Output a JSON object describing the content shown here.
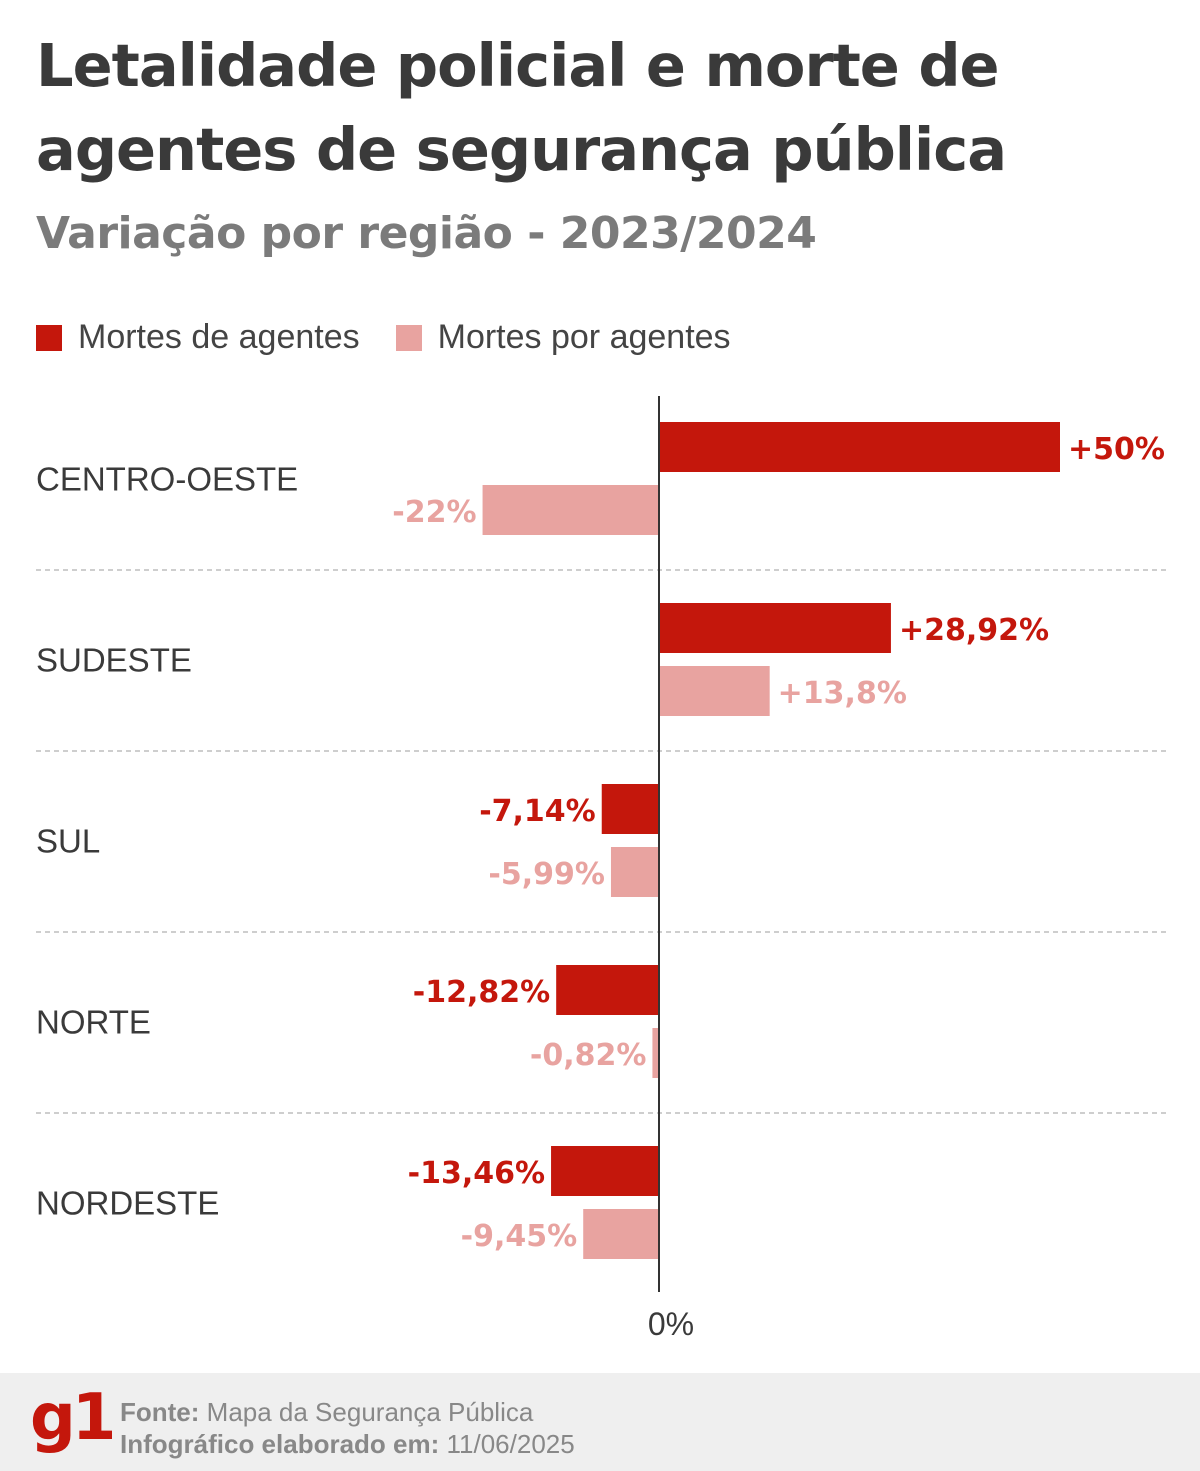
{
  "title": "Letalidade policial e morte de agentes de segurança pública",
  "subtitle": "Variação por região - 2023/2024",
  "legend": [
    {
      "label": "Mortes de agentes",
      "color": "#c4170c"
    },
    {
      "label": "Mortes por agentes",
      "color": "#e8a3a0"
    }
  ],
  "chart_data": {
    "type": "bar",
    "orientation": "horizontal",
    "categories": [
      "CENTRO-OESTE",
      "SUDESTE",
      "SUL",
      "NORTE",
      "NORDESTE"
    ],
    "series": [
      {
        "name": "Mortes de agentes",
        "color": "#c4170c",
        "values": [
          50,
          28.92,
          -7.14,
          -12.82,
          -13.46
        ],
        "labels": [
          "+50%",
          "+28,92%",
          "-7,14%",
          "-12,82%",
          "-13,46%"
        ]
      },
      {
        "name": "Mortes por agentes",
        "color": "#e8a3a0",
        "values": [
          -22,
          13.8,
          -5.99,
          -0.82,
          -9.45
        ],
        "labels": [
          "-22%",
          "+13,8%",
          "-5,99%",
          "-0,82%",
          "-9,45%"
        ]
      }
    ],
    "zero_label": "0%",
    "grid": false
  },
  "footer": {
    "logo": "g1",
    "source_label": "Fonte:",
    "source": "Mapa da Segurança Pública",
    "date_label": "Infográfico elaborado em:",
    "date": "11/06/2025"
  }
}
